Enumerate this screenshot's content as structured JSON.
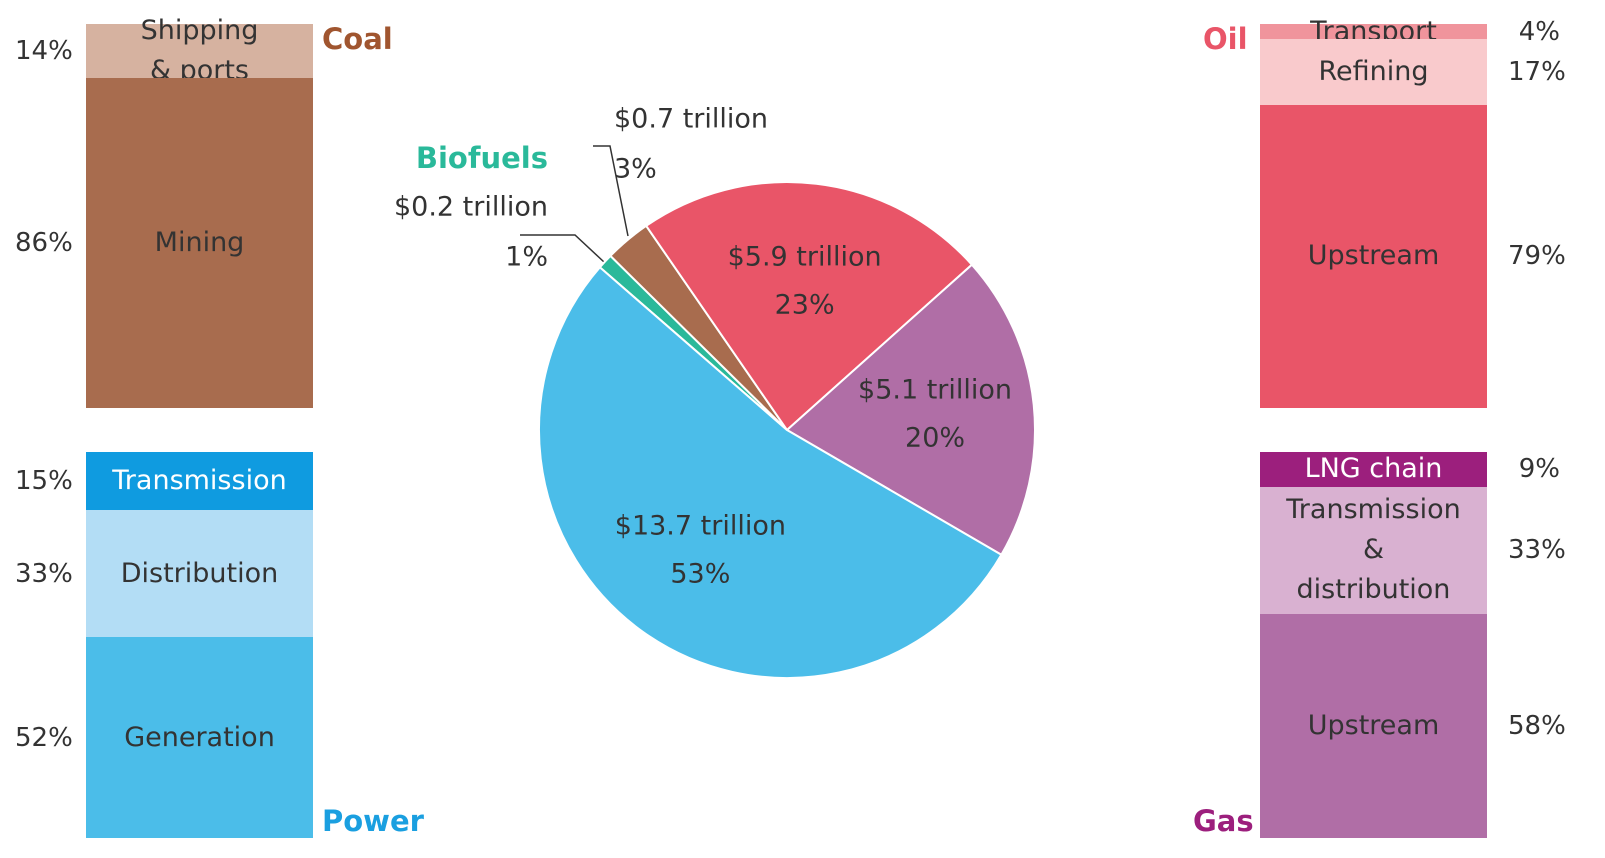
{
  "chart_data": [
    {
      "type": "pie",
      "categories": [
        "Biofuels",
        "Coal",
        "Oil",
        "Gas",
        "Power"
      ],
      "values": [
        1,
        3,
        23,
        20,
        53
      ],
      "value_labels": [
        "1%",
        "3%",
        "23%",
        "20%",
        "53%"
      ],
      "amounts": [
        0.2,
        0.7,
        5.9,
        5.1,
        13.7
      ],
      "amount_labels": [
        "$0.2 trillion",
        "$0.7 trillion",
        "$5.9 trillion",
        "$5.1 trillion",
        "$13.7 trillion"
      ],
      "colors": [
        "#2ab99a",
        "#a86c4e",
        "#e95568",
        "#b06ea6",
        "#4bbde9"
      ]
    },
    {
      "type": "bar",
      "categories": [
        "Shipping\n& ports",
        "Mining"
      ],
      "values": [
        14,
        86
      ],
      "value_labels": [
        "14%",
        "86%"
      ],
      "colors": [
        "#d6b2a0",
        "#a86c4e"
      ]
    },
    {
      "type": "bar",
      "categories": [
        "Transmission",
        "Distribution",
        "Generation"
      ],
      "values": [
        15,
        33,
        52
      ],
      "value_labels": [
        "15%",
        "33%",
        "52%"
      ],
      "colors": [
        "#0f9be0",
        "#b3ddf5",
        "#4bbde9"
      ]
    },
    {
      "type": "bar",
      "categories": [
        "Transport",
        "Refining",
        "Upstream"
      ],
      "values": [
        4,
        17,
        79
      ],
      "value_labels": [
        "4%",
        "17%",
        "79%"
      ],
      "colors": [
        "#f0949c",
        "#f9cacc",
        "#e95568"
      ]
    },
    {
      "type": "bar",
      "categories": [
        "LNG chain",
        "Transmission\n&\ndistribution",
        "Upstream"
      ],
      "values": [
        9,
        33,
        58
      ],
      "value_labels": [
        "9%",
        "33%",
        "58%"
      ],
      "colors": [
        "#9c1f7d",
        "#d9b1d1",
        "#b06ea6"
      ]
    }
  ]
}
